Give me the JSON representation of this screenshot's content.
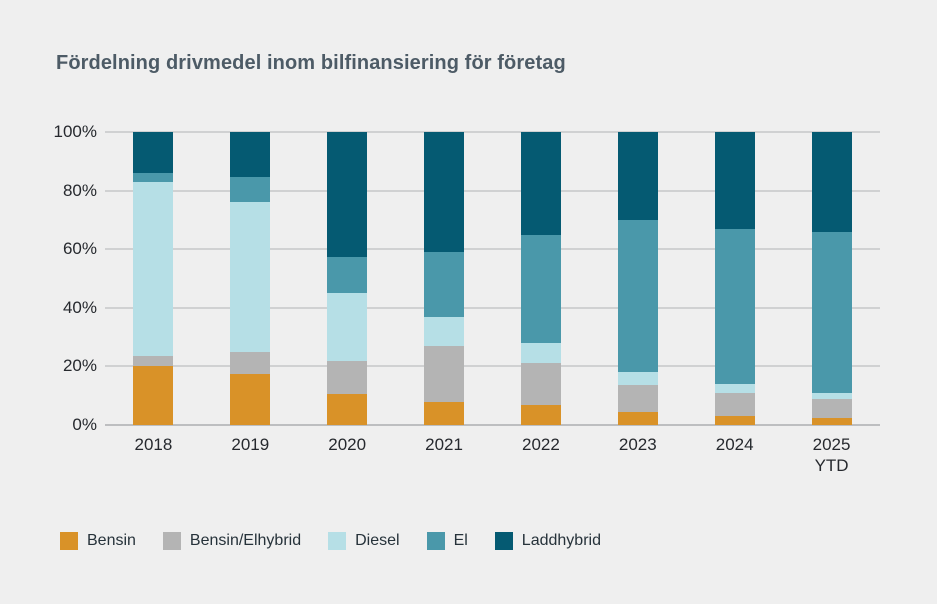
{
  "page": {
    "background": "#efefef"
  },
  "header": {
    "title": "Fördelning drivmedel inom bilfinansiering för företag",
    "title_color": "#4d5b66"
  },
  "chart_data": {
    "type": "bar",
    "variant": "stacked-percentage",
    "title": "Fördelning drivmedel inom bilfinansiering för företag",
    "unit": "%",
    "categories": [
      "2018",
      "2019",
      "2020",
      "2021",
      "2022",
      "2023",
      "2024",
      "2025"
    ],
    "category_sublabels": [
      "",
      "",
      "",
      "",
      "",
      "",
      "",
      "YTD"
    ],
    "series": [
      {
        "name": "Bensin",
        "color": "#d99228",
        "values": [
          20,
          17.5,
          10.5,
          8,
          7,
          4.5,
          3,
          2.5
        ]
      },
      {
        "name": "Bensin/Elhybrid",
        "color": "#b4b4b4",
        "values": [
          3.5,
          7.5,
          11.5,
          19,
          14,
          9,
          8,
          6.5
        ]
      },
      {
        "name": "Diesel",
        "color": "#b6dfe6",
        "values": [
          59.5,
          51,
          23,
          10,
          7,
          4.5,
          3,
          2
        ]
      },
      {
        "name": "El",
        "color": "#4a98aa",
        "values": [
          3,
          8.5,
          12.5,
          22,
          37,
          52,
          53,
          55
        ]
      },
      {
        "name": "Laddhybrid",
        "color": "#055a72",
        "values": [
          14,
          15.5,
          42.5,
          41,
          35,
          30,
          33,
          34
        ]
      }
    ],
    "y_axis": {
      "tick_values": [
        0,
        20,
        40,
        60,
        80,
        100
      ],
      "tick_suffix": "%",
      "min": 0,
      "max": 100
    },
    "xlabel": "",
    "ylabel": "",
    "grid": true,
    "gridline_color": "#d0d1d2",
    "axis_text_color": "#26292e",
    "legend_position": "bottom"
  }
}
